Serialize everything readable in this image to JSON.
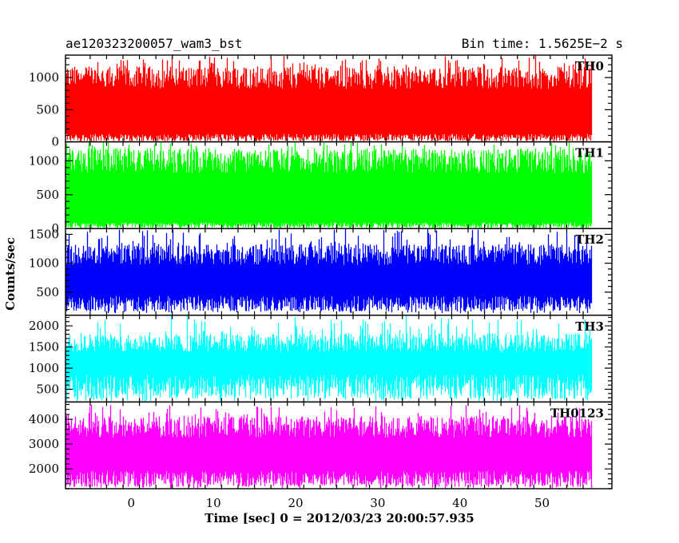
{
  "chart_data": {
    "type": "line",
    "title_left": "ae120323200057_wam3_bst",
    "title_right": "Bin time: 1.5625E−2 s",
    "xlabel": "Time [sec] 0 = 2012/03/23 20:00:57.935",
    "ylabel": "Counts/sec",
    "xlim": [
      -8.0,
      58.5
    ],
    "x_ticks": [
      0,
      10,
      20,
      30,
      40,
      50
    ],
    "x_tick_labels": [
      "0",
      "10",
      "20",
      "30",
      "40",
      "50"
    ],
    "data_x_range": [
      -8.0,
      56.0
    ],
    "bin_time": 0.015625,
    "grid": false,
    "panels": [
      {
        "name": "TH0",
        "color": "#ff0000",
        "ylim": [
          0,
          1350
        ],
        "y_ticks": [
          0,
          500,
          1000
        ],
        "y_tick_labels": [
          "0",
          "500",
          "1000"
        ],
        "baseline": 70,
        "low_spike": 0,
        "mean": 560,
        "high_typical": 1000,
        "high_spike": 1350
      },
      {
        "name": "TH1",
        "color": "#00ff00",
        "ylim": [
          0,
          1280
        ],
        "y_ticks": [
          0,
          500,
          1000
        ],
        "y_tick_labels": [
          "0",
          "500",
          "1000"
        ],
        "baseline": 50,
        "low_spike": 0,
        "mean": 540,
        "high_typical": 1000,
        "high_spike": 1280
      },
      {
        "name": "TH2",
        "color": "#0000ff",
        "ylim": [
          100,
          1600
        ],
        "y_ticks": [
          500,
          1000,
          1500
        ],
        "y_tick_labels": [
          "500",
          "1000",
          "1500"
        ],
        "baseline": 300,
        "low_spike": 130,
        "mean": 700,
        "high_typical": 1150,
        "high_spike": 1600
      },
      {
        "name": "TH3",
        "color": "#00ffff",
        "ylim": [
          200,
          2250
        ],
        "y_ticks": [
          500,
          1000,
          1500,
          2000
        ],
        "y_tick_labels": [
          "500",
          "1000",
          "1500",
          "2000"
        ],
        "baseline": 560,
        "low_spike": 200,
        "mean": 1050,
        "high_typical": 1600,
        "high_spike": 2250
      },
      {
        "name": "TH0123",
        "color": "#ff00ff",
        "ylim": [
          1200,
          4700
        ],
        "y_ticks": [
          2000,
          3000,
          4000
        ],
        "y_tick_labels": [
          "2000",
          "3000",
          "4000"
        ],
        "baseline": 1600,
        "low_spike": 1200,
        "mean": 2600,
        "high_typical": 3700,
        "high_spike": 4600
      }
    ]
  }
}
